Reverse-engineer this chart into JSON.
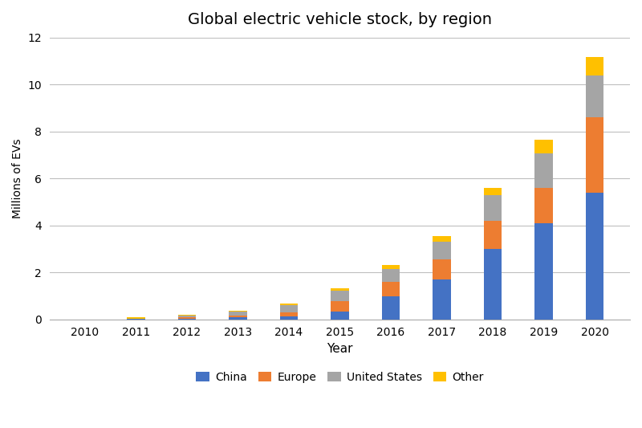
{
  "title": "Global electric vehicle stock, by region",
  "xlabel": "Year",
  "ylabel": "Millions of EVs",
  "years": [
    2010,
    2011,
    2012,
    2013,
    2014,
    2015,
    2016,
    2017,
    2018,
    2019,
    2020
  ],
  "china": [
    0.0,
    0.01,
    0.04,
    0.08,
    0.13,
    0.33,
    0.97,
    1.7,
    2.99,
    4.1,
    5.4
  ],
  "europe": [
    0.0,
    0.01,
    0.05,
    0.07,
    0.18,
    0.45,
    0.62,
    0.85,
    1.2,
    1.5,
    3.2
  ],
  "united_states": [
    0.0,
    0.01,
    0.07,
    0.17,
    0.29,
    0.43,
    0.57,
    0.76,
    1.1,
    1.45,
    1.77
  ],
  "other": [
    0.0,
    0.05,
    0.02,
    0.05,
    0.08,
    0.13,
    0.17,
    0.24,
    0.3,
    0.61,
    0.8
  ],
  "color_china": "#4472C4",
  "color_europe": "#ED7D31",
  "color_us": "#A5A5A5",
  "color_other": "#FFC000",
  "ylim": [
    0,
    12
  ],
  "yticks": [
    0,
    2,
    4,
    6,
    8,
    10,
    12
  ],
  "background_color": "#FFFFFF",
  "grid_color": "#BFBFBF",
  "bar_width": 0.35,
  "legend_labels": [
    "China",
    "Europe",
    "United States",
    "Other"
  ]
}
